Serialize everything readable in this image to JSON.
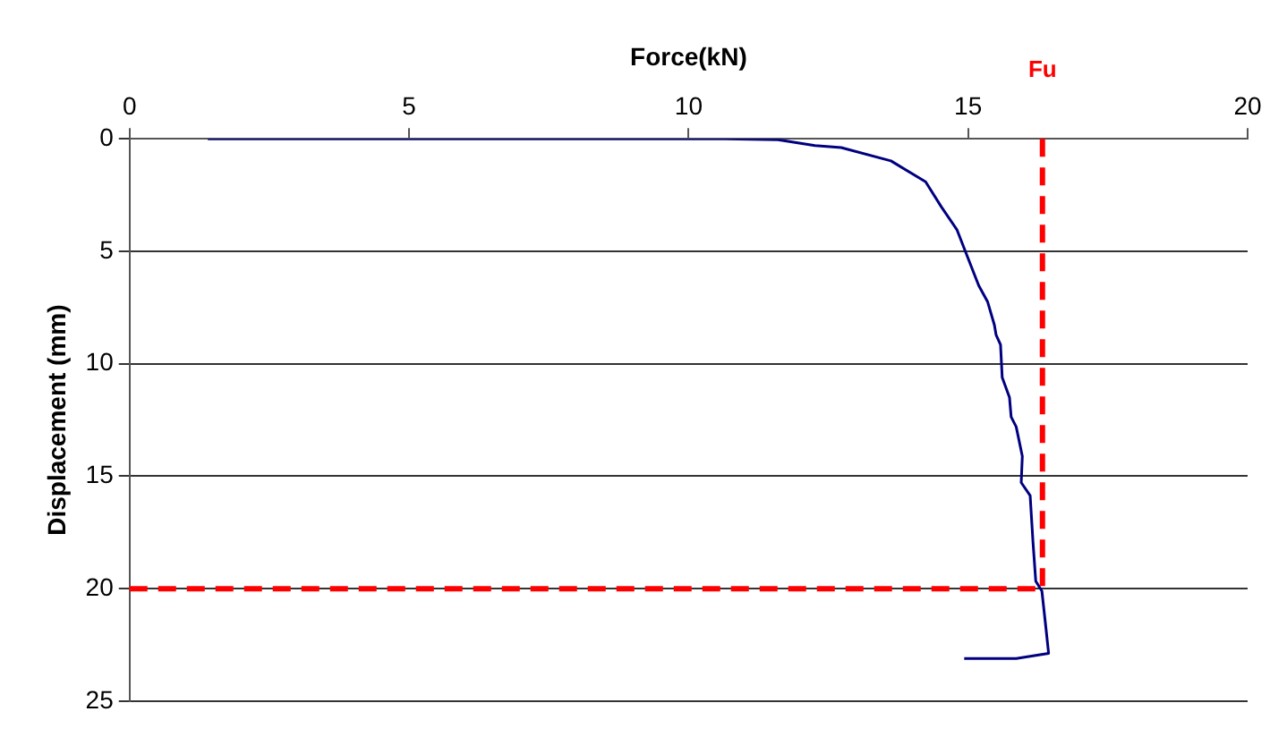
{
  "chart_data": {
    "type": "line",
    "xlabel": "Force(kN)",
    "ylabel": "Displacement (mm)",
    "xlim": [
      0,
      20
    ],
    "xticks": [
      0,
      5,
      10,
      15,
      20
    ],
    "ylim": [
      25,
      0
    ],
    "yticks": [
      0,
      5,
      10,
      15,
      20,
      25
    ],
    "grid": "y",
    "legend": false,
    "marker": "none",
    "line_style": "solid",
    "series": [
      {
        "color": "#000080",
        "x": [
          1.4,
          10,
          10.65,
          11.6,
          12.26,
          12.73,
          13.62,
          14.24,
          14.52,
          14.8,
          14.96,
          15.19,
          15.35,
          15.47,
          15.5,
          15.58,
          15.61,
          15.74,
          15.77,
          15.86,
          15.97,
          15.95,
          16.11,
          16.16,
          16.21,
          16.32,
          16.39,
          16.44,
          15.86,
          14.93
        ],
        "values": [
          0,
          0,
          0,
          0.04,
          0.3,
          0.39,
          0.98,
          1.91,
          3.02,
          4.04,
          5.06,
          6.52,
          7.25,
          8.27,
          8.71,
          9.15,
          10.61,
          11.49,
          12.36,
          12.8,
          14.11,
          15.28,
          15.86,
          17.9,
          19.66,
          20.1,
          21.7,
          22.87,
          23.1,
          23.1
        ]
      }
    ],
    "ref_lines": [
      {
        "axis": "x",
        "value": 16.33,
        "label": "Fu",
        "color": "#ff0000",
        "line_style": "dashed"
      },
      {
        "axis": "y",
        "value": 20,
        "color": "#ff0000",
        "line_style": "dashed"
      }
    ]
  }
}
